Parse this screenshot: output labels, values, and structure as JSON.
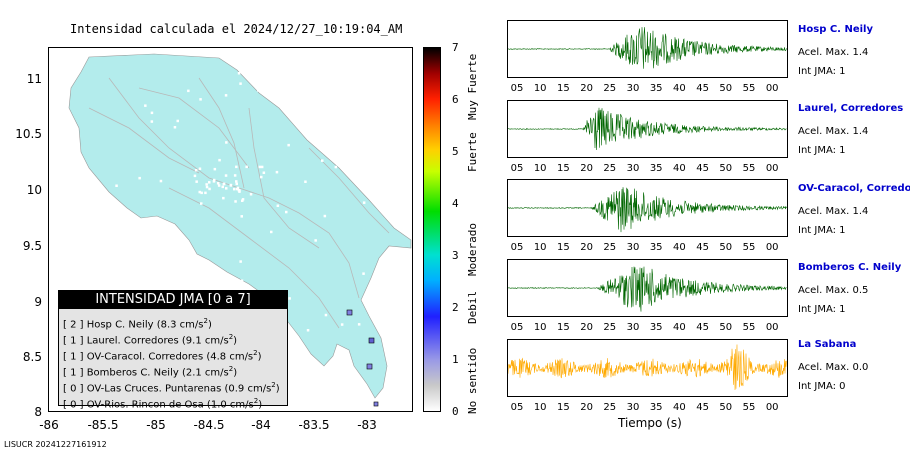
{
  "title": "Intensidad calculada el 2024/12/27_10:19:04_AM",
  "map": {
    "lat_ticks": [
      "11",
      "10.5",
      "10",
      "9.5",
      "9",
      "8.5",
      "8"
    ],
    "lon_ticks": [
      "-86",
      "-85.5",
      "-85",
      "-84.5",
      "-84",
      "-83.5",
      "-83"
    ],
    "land_color": "#b3ecec",
    "station_color": "#8080e0"
  },
  "legend": {
    "title": "INTENSIDAD JMA [0 a 7]",
    "rows": [
      {
        "pre": "[ 2 ]  Hosp C. Neily (8.3 cm/s",
        "sup": "2",
        "post": ")"
      },
      {
        "pre": "[ 1 ]  Laurel. Corredores (9.1 cm/s",
        "sup": "2",
        "post": ")"
      },
      {
        "pre": "[ 1 ]  OV-Caracol. Corredores (4.8 cm/s",
        "sup": "2",
        "post": ")"
      },
      {
        "pre": "[ 1 ]  Bomberos C. Neily (2.1 cm/s",
        "sup": "2",
        "post": ")"
      },
      {
        "pre": "[ 0 ]  OV-Las Cruces. Puntarenas (0.9 cm/s",
        "sup": "2",
        "post": ")"
      },
      {
        "pre": "[ 0 ]  OV-Rios. Rincon de Osa (1.0 cm/s",
        "sup": "2",
        "post": ")"
      }
    ]
  },
  "colorbar": {
    "ticks": [
      "7",
      "6",
      "5",
      "4",
      "3",
      "2",
      "1",
      "0"
    ],
    "labels": [
      "Muy Fuerte",
      "Fuerte",
      "Moderado",
      "Debil",
      "No sentido"
    ]
  },
  "traces": [
    {
      "name": "Hosp C. Neily",
      "acel": "Acel. Max. 1.4",
      "jma": "Int JMA: 1",
      "color": "#006600",
      "onset": 0.36,
      "peak": 0.47,
      "mode": "burst"
    },
    {
      "name": "Laurel, Corredores",
      "acel": "Acel. Max. 1.4",
      "jma": "Int JMA: 1",
      "color": "#006600",
      "onset": 0.27,
      "peak": 0.3,
      "mode": "burst"
    },
    {
      "name": "OV-Caracol, Corredore",
      "acel": "Acel. Max. 1.4",
      "jma": "Int JMA: 1",
      "color": "#006600",
      "onset": 0.3,
      "peak": 0.4,
      "mode": "burst"
    },
    {
      "name": "Bomberos C. Neily",
      "acel": "Acel. Max. 0.5",
      "jma": "Int JMA: 1",
      "color": "#006600",
      "onset": 0.32,
      "peak": 0.46,
      "mode": "burst"
    },
    {
      "name": "La Sabana",
      "acel": "Acel. Max. 0.0",
      "jma": "Int JMA: 0",
      "color": "#ffaa00",
      "onset": 0.0,
      "peak": 0.82,
      "mode": "noise"
    }
  ],
  "time_ticks": [
    "05",
    "10",
    "15",
    "20",
    "25",
    "30",
    "35",
    "40",
    "45",
    "50",
    "55",
    "00"
  ],
  "xaxis_label": "Tiempo (s)",
  "footer": "LISUCR 20241227161912"
}
